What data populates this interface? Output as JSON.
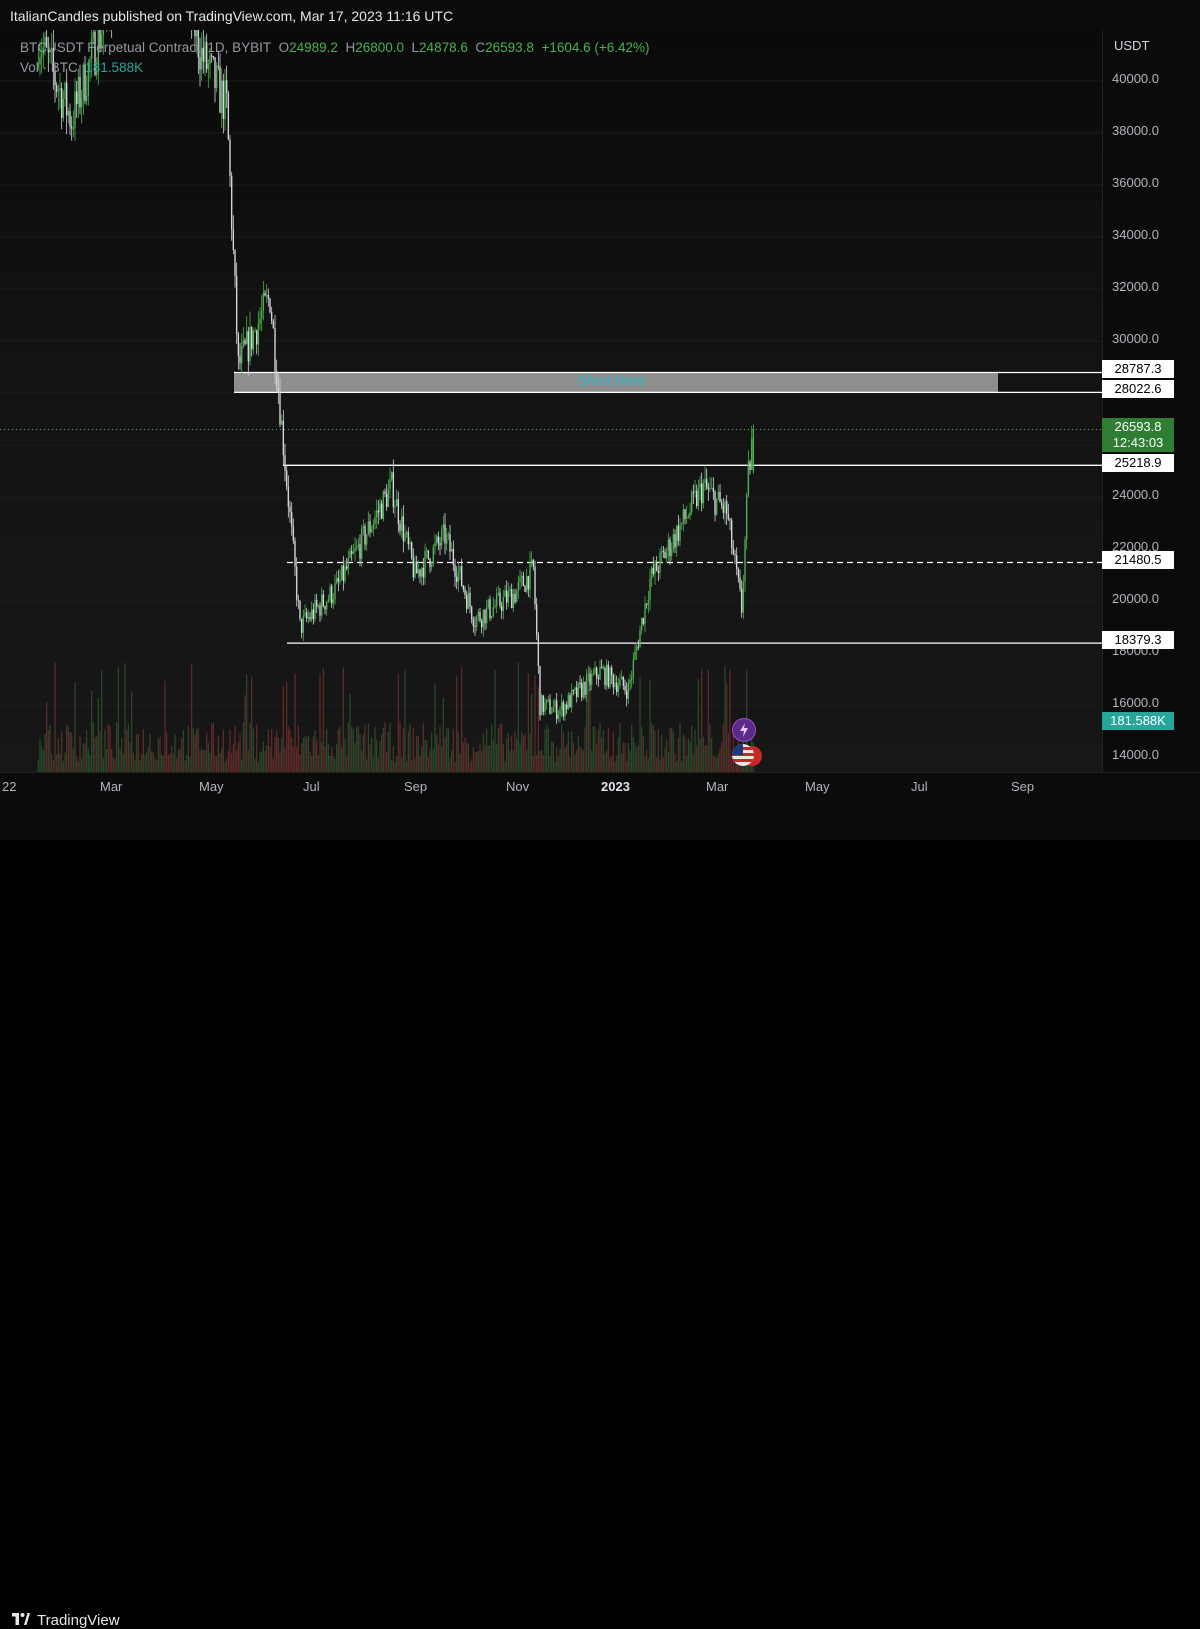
{
  "header": {
    "text": "ItalianCandles published on TradingView.com, Mar 17, 2023 11:16 UTC"
  },
  "legend": {
    "symbol": "BTCUSDT Perpetual Contract, 1D, BYBIT",
    "o_label": "O",
    "o": "24989.2",
    "h_label": "H",
    "h": "26800.0",
    "l_label": "L",
    "l": "24878.6",
    "c_label": "C",
    "c": "26593.8",
    "change": "+1604.6 (+6.42%)",
    "vol_label": "Vol · BTC",
    "vol": "181.588K"
  },
  "axis": {
    "unit": "USDT",
    "ticks": [
      "40000.0",
      "38000.0",
      "36000.0",
      "34000.0",
      "32000.0",
      "30000.0",
      "24000.0",
      "22000.0",
      "20000.0",
      "18000.0",
      "16000.0",
      "14000.0"
    ]
  },
  "price_labels": [
    "28787.3",
    "28022.6",
    "25218.9",
    "21480.5",
    "18379.3"
  ],
  "current": {
    "price": "26593.8",
    "countdown": "12:43:03",
    "volume": "181.588K"
  },
  "zone": {
    "label": "Short Here"
  },
  "x_axis": {
    "ticks": [
      "22",
      "Mar",
      "May",
      "Jul",
      "Sep",
      "Nov",
      "2023",
      "Mar",
      "May",
      "Jul",
      "Sep"
    ]
  },
  "footer": {
    "brand": "TradingView"
  },
  "colors": {
    "up": "#4caf50",
    "down": "#d1d4dc",
    "accent": "#26a69a",
    "zone": "#b8b8b8",
    "label_text": "#2bb7c8"
  },
  "chart_data": {
    "type": "line",
    "title": "BTCUSDT Perpetual Contract, 1D, BYBIT",
    "ylabel": "USDT",
    "ylim": [
      13800,
      41500
    ],
    "x": [
      "2022-01-10",
      "2022-02-01",
      "2022-03-01",
      "2022-03-28",
      "2022-04-20",
      "2022-05-05",
      "2022-05-12",
      "2022-05-31",
      "2022-06-13",
      "2022-06-18",
      "2022-07-10",
      "2022-08-12",
      "2022-08-26",
      "2022-09-13",
      "2022-10-01",
      "2022-10-25",
      "2022-11-05",
      "2022-11-09",
      "2022-11-21",
      "2022-12-15",
      "2023-01-01",
      "2023-01-14",
      "2023-02-15",
      "2023-03-01",
      "2023-03-10",
      "2023-03-14",
      "2023-03-17"
    ],
    "series": [
      {
        "values": [
          42000,
          38500,
          44000,
          47000,
          41000,
          39000,
          29000,
          31700,
          22500,
          19000,
          20500,
          24400,
          21000,
          22500,
          19300,
          20300,
          21200,
          16000,
          15800,
          17300,
          16600,
          20800,
          24400,
          23400,
          19700,
          24800,
          26593.8
        ]
      }
    ],
    "levels": [
      {
        "value": 28787.3,
        "style": "solid"
      },
      {
        "value": 28022.6,
        "style": "solid"
      },
      {
        "value": 25218.9,
        "style": "solid"
      },
      {
        "value": 21480.5,
        "style": "dashed"
      },
      {
        "value": 18379.3,
        "style": "solid"
      }
    ],
    "zone": {
      "from": 28022.6,
      "to": 28787.3,
      "label": "Short Here"
    },
    "current_price": 26593.8
  }
}
